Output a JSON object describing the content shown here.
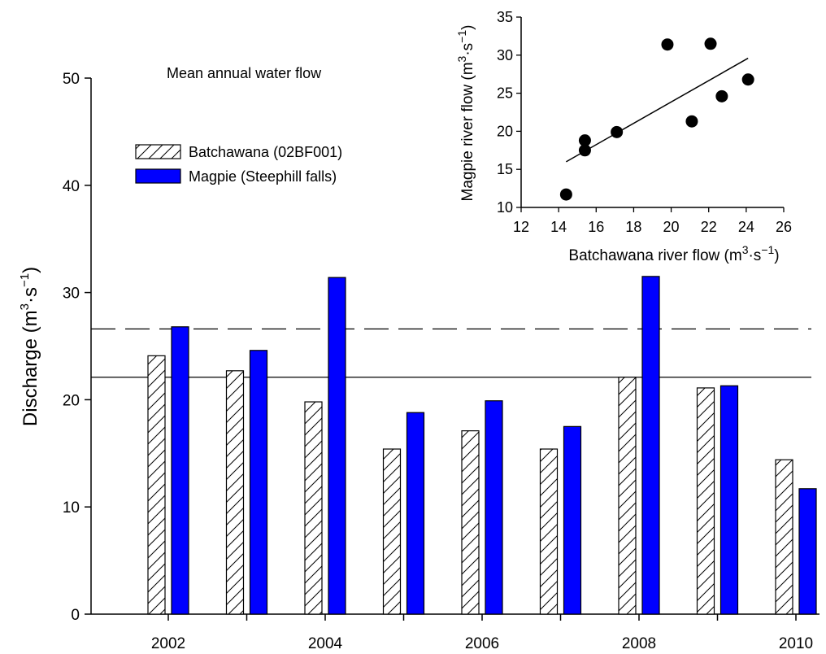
{
  "chart_data": [
    {
      "type": "bar",
      "title": "",
      "annotation": "Mean annual water flow",
      "xlabel": "",
      "ylabel": "Discharge (m³·s⁻¹)",
      "ylabel_parts": {
        "base": "Discharge (m",
        "sup1": "3",
        "mid": "·s",
        "sup2": "−1",
        "end": ")"
      },
      "ylim": [
        0,
        50
      ],
      "yticks": [
        0,
        10,
        20,
        30,
        40,
        50
      ],
      "categories": [
        "2002",
        "2003",
        "2004",
        "2005",
        "2006",
        "2007",
        "2008",
        "2009",
        "2010"
      ],
      "xtick_labels": [
        "2002",
        "2004",
        "2006",
        "2008",
        "2010"
      ],
      "series": [
        {
          "name": "Batchawana (02BF001)",
          "fill": "hatched",
          "values": [
            24.1,
            22.7,
            19.8,
            15.4,
            17.1,
            15.4,
            22.1,
            21.1,
            14.4
          ]
        },
        {
          "name": "Magpie (Steephill falls)",
          "fill": "#0000ff",
          "values": [
            26.8,
            24.6,
            31.4,
            18.8,
            19.9,
            17.5,
            31.5,
            21.3,
            11.7
          ]
        }
      ],
      "reference_lines": [
        {
          "style": "dashed",
          "value": 26.6
        },
        {
          "style": "solid",
          "value": 22.1
        }
      ],
      "legend_position": "upper-left",
      "grid": false
    },
    {
      "type": "scatter",
      "inset": true,
      "xlabel_parts": {
        "base": "Batchawana river flow (m",
        "sup1": "3",
        "mid": "·s",
        "sup2": "−1",
        "end": ")"
      },
      "ylabel_parts": {
        "base": "Magpie river flow (m",
        "sup1": "3",
        "mid": "·s",
        "sup2": "−1",
        "end": ")"
      },
      "xlim": [
        12,
        26
      ],
      "ylim": [
        10,
        35
      ],
      "xticks": [
        12,
        14,
        16,
        18,
        20,
        22,
        24,
        26
      ],
      "yticks": [
        10,
        15,
        20,
        25,
        30,
        35
      ],
      "points": [
        {
          "x": 14.4,
          "y": 11.7
        },
        {
          "x": 15.4,
          "y": 18.8
        },
        {
          "x": 15.4,
          "y": 17.5
        },
        {
          "x": 17.1,
          "y": 19.9
        },
        {
          "x": 19.8,
          "y": 31.4
        },
        {
          "x": 21.1,
          "y": 21.3
        },
        {
          "x": 22.1,
          "y": 31.5
        },
        {
          "x": 22.7,
          "y": 24.6
        },
        {
          "x": 24.1,
          "y": 26.8
        }
      ],
      "fit_line": {
        "x": [
          14.4,
          24.1
        ],
        "y": [
          16.0,
          29.6
        ]
      },
      "marker_color": "#000000",
      "grid": false
    }
  ]
}
